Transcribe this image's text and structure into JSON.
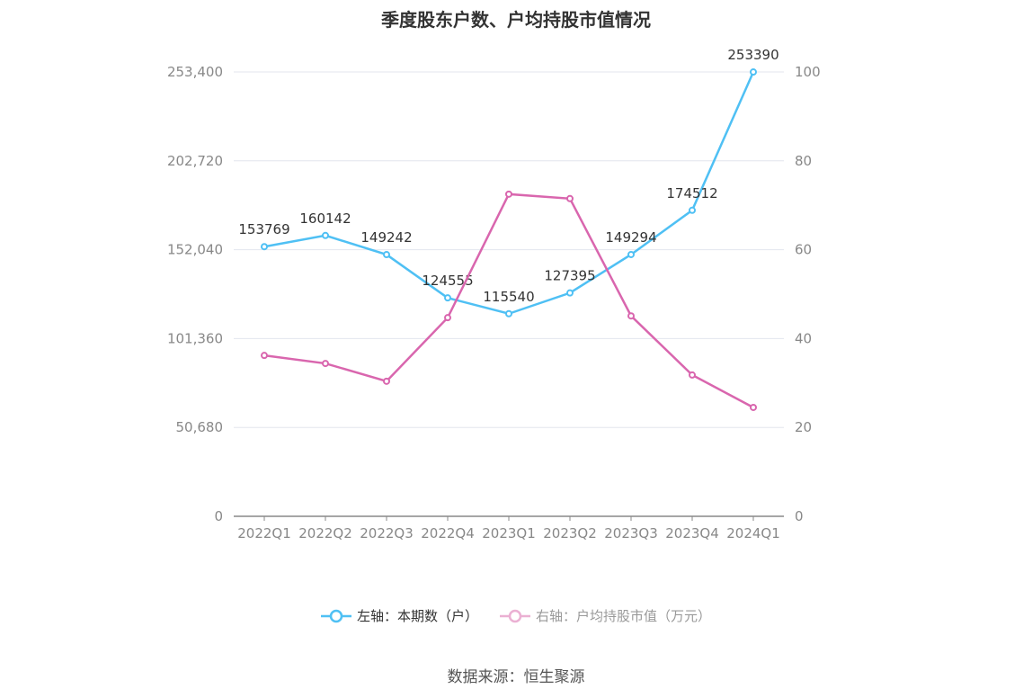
{
  "chart_data": {
    "type": "line",
    "title": "季度股东户数、户均持股市值情况",
    "categories": [
      "2022Q1",
      "2022Q2",
      "2022Q3",
      "2022Q4",
      "2023Q1",
      "2023Q2",
      "2023Q3",
      "2023Q4",
      "2024Q1"
    ],
    "left_axis": {
      "ticks": [
        "0",
        "50,680",
        "101,360",
        "152,040",
        "202,720",
        "253,400"
      ],
      "range": [
        0,
        253400
      ]
    },
    "right_axis": {
      "ticks": [
        "0",
        "20",
        "40",
        "60",
        "80",
        "100"
      ],
      "range": [
        0,
        100
      ]
    },
    "series": [
      {
        "name": "左轴：本期数（户）",
        "axis": "left",
        "color": "#4fc0f4",
        "labels": [
          "153769",
          "160142",
          "149242",
          "124555",
          "115540",
          "127395",
          "149294",
          "174512",
          "253390"
        ],
        "values": [
          153769,
          160142,
          149242,
          124555,
          115540,
          127395,
          149294,
          174512,
          253390
        ]
      },
      {
        "name": "右轴：户均持股市值（万元）",
        "axis": "right",
        "color": "#d966ae",
        "values": [
          36.2,
          34.4,
          30.4,
          44.7,
          72.5,
          71.5,
          45.1,
          31.8,
          24.5
        ]
      }
    ],
    "legend_position": "bottom",
    "grid": true
  },
  "source": "数据来源：恒生聚源"
}
